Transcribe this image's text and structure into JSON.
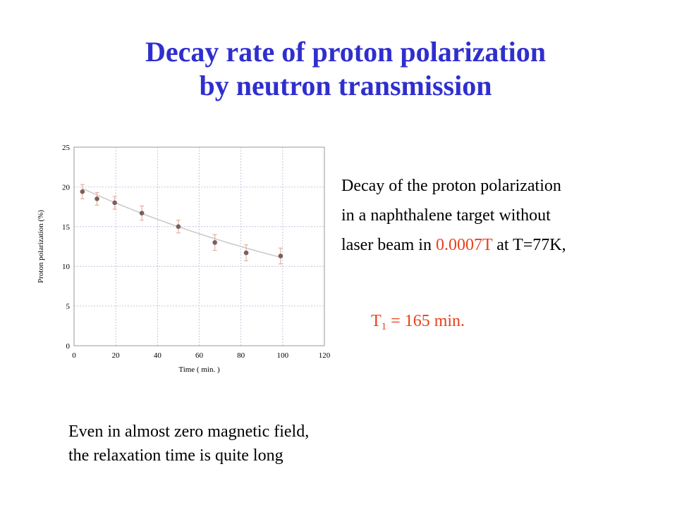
{
  "title": {
    "line1": "Decay rate of proton polarization",
    "line2": "by neutron transmission"
  },
  "description": {
    "line1": "Decay of the proton polarization",
    "line2": "in a naphthalene target without",
    "line3_prefix": "laser beam in ",
    "line3_field": "0.0007T",
    "line3_suffix": " at T=77K,"
  },
  "result": {
    "t_symbol": "T",
    "t_sub": "1",
    "t_value": " = 165 min."
  },
  "footer": {
    "line1": "Even in almost zero magnetic  field,",
    "line2": "the relaxation time is quite long"
  },
  "colors": {
    "title": "#2f2fcf",
    "highlight": "#e8401c",
    "marker": "#7a5f5f",
    "error_bar": "#e6a08a",
    "fit_curve": "#c8c8c8",
    "grid": "#b8b8d8"
  },
  "chart_data": {
    "type": "scatter",
    "xlabel": "Time ( min. )",
    "ylabel": "Proton polarization (%)",
    "xlim": [
      0,
      120
    ],
    "ylim": [
      0,
      25
    ],
    "xticks": [
      0,
      20,
      40,
      60,
      80,
      100,
      120
    ],
    "yticks": [
      0,
      5,
      10,
      15,
      20,
      25
    ],
    "grid": true,
    "points": [
      {
        "x": 4,
        "y": 19.4,
        "err": 0.9
      },
      {
        "x": 11,
        "y": 18.5,
        "err": 0.8
      },
      {
        "x": 19.5,
        "y": 18.0,
        "err": 0.8
      },
      {
        "x": 32.5,
        "y": 16.7,
        "err": 0.9
      },
      {
        "x": 50,
        "y": 15.0,
        "err": 0.8
      },
      {
        "x": 67.5,
        "y": 13.0,
        "err": 1.0
      },
      {
        "x": 82.5,
        "y": 11.7,
        "err": 1.0
      },
      {
        "x": 99,
        "y": 11.3,
        "err": 1.0
      }
    ],
    "fit": {
      "type": "exponential",
      "t1": 165,
      "p0": 19.8,
      "x_start": 4,
      "x_end": 99
    }
  }
}
